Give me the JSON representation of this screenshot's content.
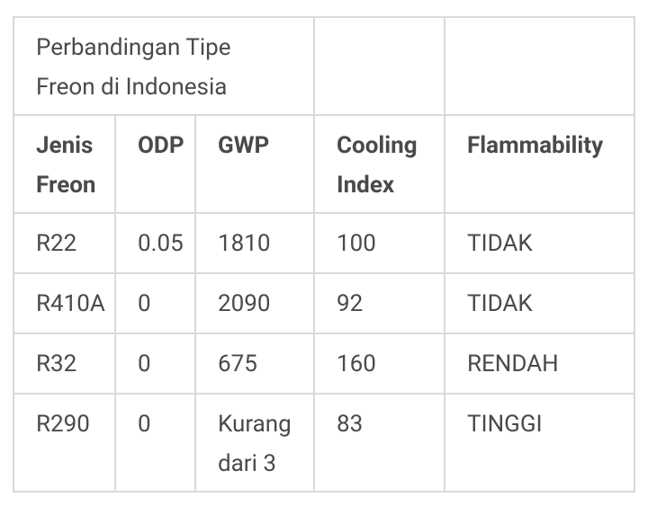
{
  "title": "Perbandingan Tipe Freon di Indonesia",
  "table": {
    "header": [
      "Jenis Freon",
      "ODP",
      "GWP",
      "Cooling Index",
      "Flammability"
    ],
    "rows": [
      [
        "R22",
        0.05,
        1810,
        100,
        "TIDAK"
      ],
      [
        "R410A",
        0,
        2090,
        92,
        "TIDAK"
      ],
      [
        "R32",
        0,
        675,
        160,
        "RENDAH"
      ],
      [
        "R290",
        0,
        "Kurang dari 3",
        83,
        "TINGGI"
      ]
    ]
  }
}
